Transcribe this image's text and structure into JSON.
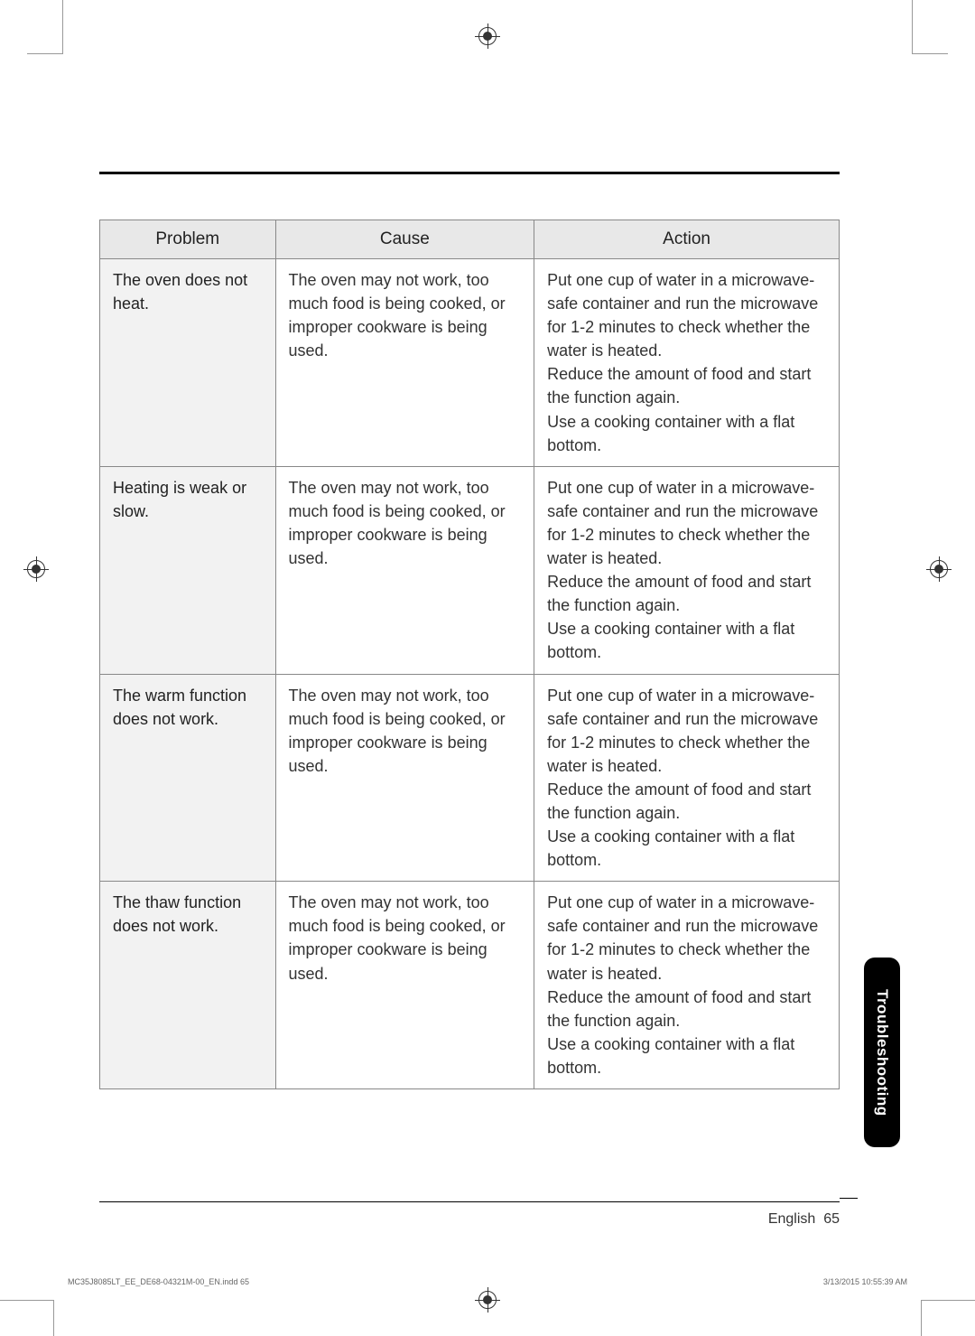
{
  "table": {
    "headers": {
      "problem": "Problem",
      "cause": "Cause",
      "action": "Action"
    },
    "rows": [
      {
        "problem": "The oven does not heat.",
        "cause": "The oven may not work, too much food is being cooked, or improper cookware is being used.",
        "action": "Put one cup of water in a microwave-safe container and run the microwave for 1-2 minutes to check whether the water is heated.\nReduce the amount of food and start the function again.\nUse a cooking container with a flat bottom."
      },
      {
        "problem": "Heating is weak or slow.",
        "cause": "The oven may not work, too much food is being cooked, or improper cookware is being used.",
        "action": "Put one cup of water in a microwave-safe container and run the microwave for 1-2 minutes to check whether the water is heated.\nReduce the amount of food and start the function again.\nUse a cooking container with a flat bottom."
      },
      {
        "problem": "The warm function does not work.",
        "cause": "The oven may not work, too much food is being cooked, or improper cookware is being used.",
        "action": "Put one cup of water in a microwave-safe container and run the microwave for 1-2 minutes to check whether the water is heated.\nReduce the amount of food and start the function again.\nUse a cooking container with a flat bottom."
      },
      {
        "problem": "The thaw function does not work.",
        "cause": "The oven may not work, too much food is being cooked, or improper cookware is being used.",
        "action": "Put one cup of water in a microwave-safe container and run the microwave for 1-2 minutes to check whether the water is heated.\nReduce the amount of food and start the function again.\nUse a cooking container with a flat bottom."
      }
    ]
  },
  "sideTab": "Troubleshooting",
  "footer": {
    "language": "English",
    "page": "65"
  },
  "printInfo": {
    "left": "MC35J8085LT_EE_DE68-04321M-00_EN.indd   65",
    "right": "3/13/2015   10:55:39 AM"
  }
}
